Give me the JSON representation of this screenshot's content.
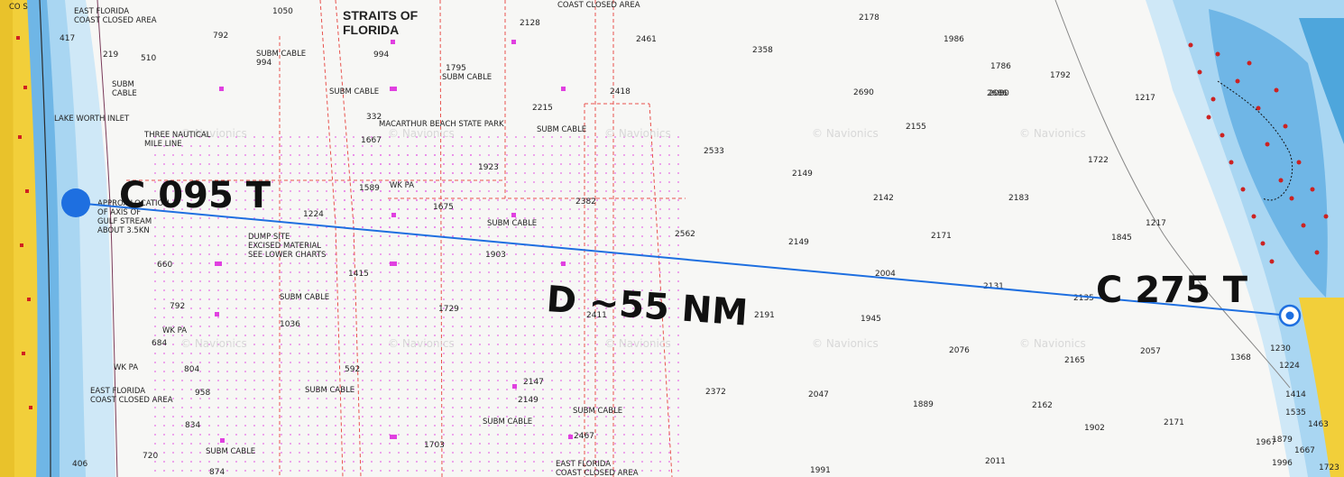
{
  "chart_title": "STRAITS OF\nFLORIDA",
  "route": {
    "course_out": "C 095 T",
    "course_back": "C 275 T",
    "distance": "D ~55 NM",
    "line_color": "#1e6fe0"
  },
  "colors": {
    "deep_water": "#f7f7f5",
    "shallow_blue": "#6fb6e6",
    "mid_blue": "#a9d6f2",
    "land_yellow": "#f2cf3a",
    "cable_red": "#e8524d",
    "magenta": "#e040e0"
  },
  "area_labels": [
    "EAST FLORIDA\nCOAST CLOSED AREA",
    "COAST CLOSED AREA",
    "SUBM CABLE",
    "SUBM CABLE",
    "SUBM CABLE",
    "SUBM CABLE",
    "SUBM CABLE",
    "SUBM CABLE",
    "SUBM CABLE",
    "SUBM CABLE",
    "SUBM CABLE",
    "SUBM CABLE",
    "SUBM\nCABLE",
    "LAKE WORTH INLET",
    "MACARTHUR BEACH STATE PARK",
    "APPROX LOCATION\nOF AXIS OF\nGULF STREAM\nABOUT 3.5KN",
    "DUMP SITE\nEXCISED MATERIAL\nSEE LOWER CHARTS",
    "EAST FLORIDA\nCOAST CLOSED AREA",
    "EAST FLORIDA\nCOAST CLOSED AREA",
    "THREE NAUTICAL\nMILE LINE",
    "WK PA",
    "WK PA",
    "WK PA",
    "CO S"
  ],
  "watermark": "© Navionics",
  "soundings": [
    "1050",
    "2128",
    "2178",
    "1986",
    "792",
    "2461",
    "2358",
    "1786",
    "994",
    "1795",
    "2080",
    "1792",
    "1217",
    "2418",
    "2690",
    "2686",
    "2215",
    "332",
    "2155",
    "1667",
    "1923",
    "2533",
    "1722",
    "2149",
    "1589",
    "1675",
    "1224",
    "2142",
    "2183",
    "2382",
    "1217",
    "1845",
    "2171",
    "2149",
    "2562",
    "1903",
    "1415",
    "2004",
    "2131",
    "2135",
    "1729",
    "2411",
    "2191",
    "1945",
    "1036",
    "2076",
    "2165",
    "2057",
    "1368",
    "1230",
    "1224",
    "2372",
    "2047",
    "1889",
    "2162",
    "1414",
    "1535",
    "1463",
    "2171",
    "1902",
    "1967",
    "1879",
    "1667",
    "2147",
    "2149",
    "2467",
    "1703",
    "2011",
    "1991",
    "1996",
    "1723",
    "994",
    "792",
    "684",
    "804",
    "958",
    "834",
    "720",
    "406",
    "874",
    "592",
    "660",
    "417",
    "510",
    "219"
  ]
}
